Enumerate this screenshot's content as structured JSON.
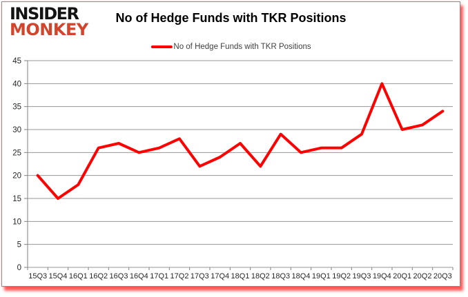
{
  "logo": {
    "line1": "INSIDER",
    "line2": "MONKEY",
    "line1_color": "#141414",
    "line2_color": "#d2452c"
  },
  "header": {
    "title": "No of Hedge Funds with TKR Positions"
  },
  "legend": {
    "label": "No of Hedge Funds with TKR Positions",
    "line_color": "#ff0000"
  },
  "chart_data": {
    "type": "line",
    "title": "No of Hedge Funds with TKR Positions",
    "categories": [
      "15Q3",
      "15Q4",
      "16Q1",
      "16Q2",
      "16Q3",
      "16Q4",
      "17Q1",
      "17Q2",
      "17Q3",
      "17Q4",
      "18Q1",
      "18Q2",
      "18Q3",
      "18Q4",
      "19Q1",
      "19Q2",
      "19Q3",
      "19Q4",
      "20Q1",
      "20Q2",
      "20Q3"
    ],
    "series": [
      {
        "name": "No of Hedge Funds with TKR Positions",
        "color": "#ff0000",
        "values": [
          20,
          15,
          18,
          26,
          27,
          25,
          26,
          28,
          22,
          24,
          27,
          22,
          29,
          25,
          26,
          26,
          29,
          40,
          30,
          31,
          34
        ]
      }
    ],
    "xlabel": "",
    "ylabel": "",
    "ylim": [
      0,
      45
    ],
    "ytick_interval": 5,
    "grid": "horizontal",
    "legend_position": "top-center",
    "colors": {
      "gridline": "#969696",
      "axis": "#808080",
      "tick_label": "#262626",
      "background": "#ffffff"
    }
  }
}
